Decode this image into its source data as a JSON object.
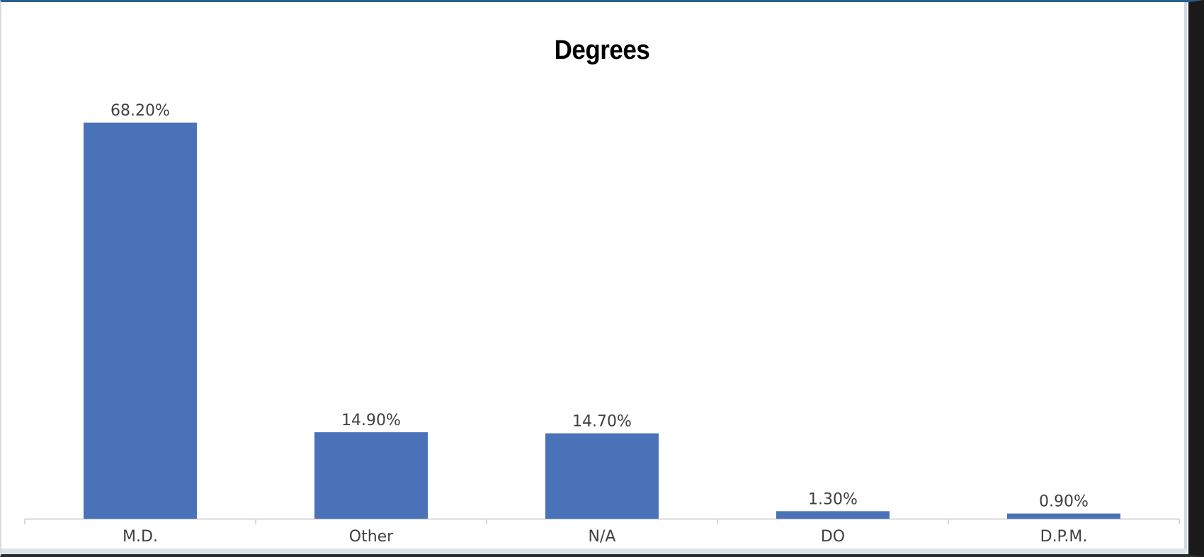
{
  "chart_data": {
    "type": "bar",
    "title": "Degrees",
    "categories": [
      "M.D.",
      "Other",
      "N/A",
      "DO",
      "D.P.M."
    ],
    "values": [
      68.2,
      14.9,
      14.7,
      1.3,
      0.9
    ],
    "data_labels": [
      "68.20%",
      "14.90%",
      "14.70%",
      "1.30%",
      "0.90%"
    ],
    "xlabel": "",
    "ylabel": "",
    "ylim": [
      0,
      68.2
    ],
    "y_axis_visible": false,
    "grid": false,
    "legend": "none",
    "bar_color": "#4a72b8"
  }
}
